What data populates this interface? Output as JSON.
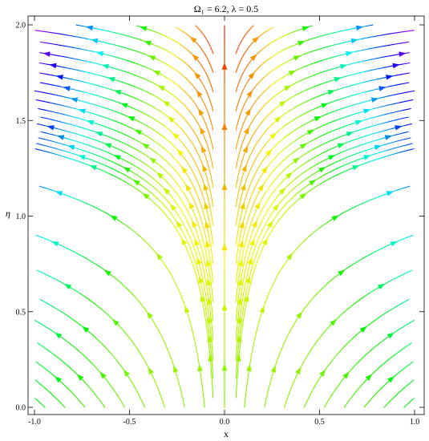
{
  "chart_data": {
    "type": "streamplot",
    "title": "Ω₁ = 6.2, λ = 0.5",
    "xlabel": "x",
    "ylabel": "η",
    "xlim": [
      -1.0,
      1.0
    ],
    "ylim": [
      0.0,
      2.0
    ],
    "x_ticks": [
      -1.0,
      -0.5,
      0.0,
      0.5,
      1.0
    ],
    "x_tick_labels": [
      "-1.0",
      "-0.5",
      "0.0",
      "0.5",
      "1.0"
    ],
    "y_ticks": [
      0.0,
      0.5,
      1.0,
      1.5,
      2.0
    ],
    "y_tick_labels": [
      "0.0",
      "0.5",
      "1.0",
      "1.5",
      "2.0"
    ],
    "grid": false,
    "legend": "none",
    "color_scheme": "rainbow by speed",
    "frame": true
  }
}
